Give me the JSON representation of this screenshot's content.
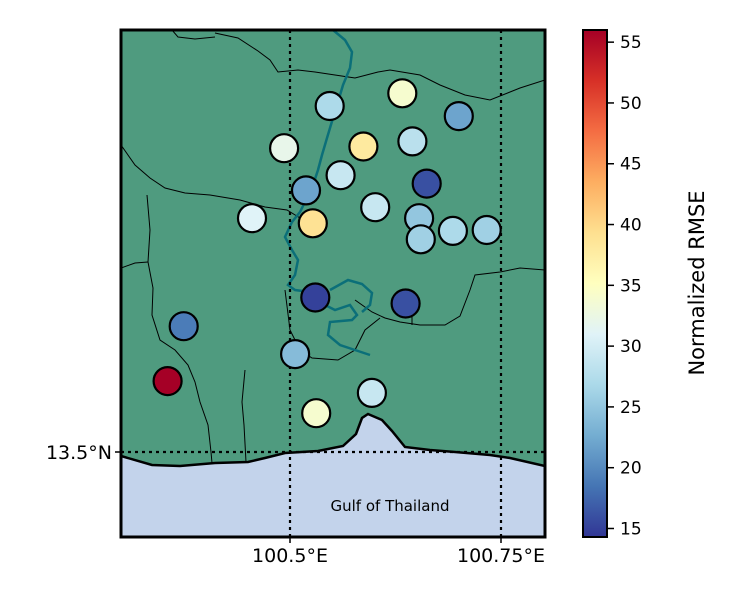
{
  "map": {
    "water_label": "Gulf of Thailand",
    "lat_labels": [
      "13.5°N"
    ],
    "lon_labels": [
      "100.5°E",
      "100.75°E"
    ],
    "land_color": "#4f9b7f",
    "sea_color": "#c3d3eb",
    "river_color": "#0b6f79"
  },
  "colorbar": {
    "label": "Normalized RMSE",
    "ticks": [
      "15",
      "20",
      "25",
      "30",
      "35",
      "40",
      "45",
      "50",
      "55"
    ],
    "min": 14.3,
    "max": 56,
    "colormap": "RdYlBu_r"
  },
  "stations": [
    {
      "lon": 100.547,
      "lat": 13.91,
      "rmse": 27
    },
    {
      "lon": 100.633,
      "lat": 13.925,
      "rmse": 34
    },
    {
      "lon": 100.7,
      "lat": 13.898,
      "rmse": 22
    },
    {
      "lon": 100.493,
      "lat": 13.86,
      "rmse": 32
    },
    {
      "lon": 100.587,
      "lat": 13.862,
      "rmse": 38
    },
    {
      "lon": 100.645,
      "lat": 13.868,
      "rmse": 28
    },
    {
      "lon": 100.56,
      "lat": 13.828,
      "rmse": 29
    },
    {
      "lon": 100.519,
      "lat": 13.81,
      "rmse": 22
    },
    {
      "lon": 100.662,
      "lat": 13.818,
      "rmse": 16
    },
    {
      "lon": 100.601,
      "lat": 13.79,
      "rmse": 29
    },
    {
      "lon": 100.653,
      "lat": 13.777,
      "rmse": 25
    },
    {
      "lon": 100.455,
      "lat": 13.777,
      "rmse": 31
    },
    {
      "lon": 100.527,
      "lat": 13.771,
      "rmse": 39
    },
    {
      "lon": 100.693,
      "lat": 13.762,
      "rmse": 27
    },
    {
      "lon": 100.733,
      "lat": 13.763,
      "rmse": 26
    },
    {
      "lon": 100.655,
      "lat": 13.752,
      "rmse": 26
    },
    {
      "lon": 100.53,
      "lat": 13.683,
      "rmse": 15
    },
    {
      "lon": 100.637,
      "lat": 13.676,
      "rmse": 16
    },
    {
      "lon": 100.374,
      "lat": 13.649,
      "rmse": 19
    },
    {
      "lon": 100.506,
      "lat": 13.616,
      "rmse": 24
    },
    {
      "lon": 100.355,
      "lat": 13.584,
      "rmse": 56
    },
    {
      "lon": 100.597,
      "lat": 13.57,
      "rmse": 29
    },
    {
      "lon": 100.531,
      "lat": 13.546,
      "rmse": 34
    }
  ]
}
